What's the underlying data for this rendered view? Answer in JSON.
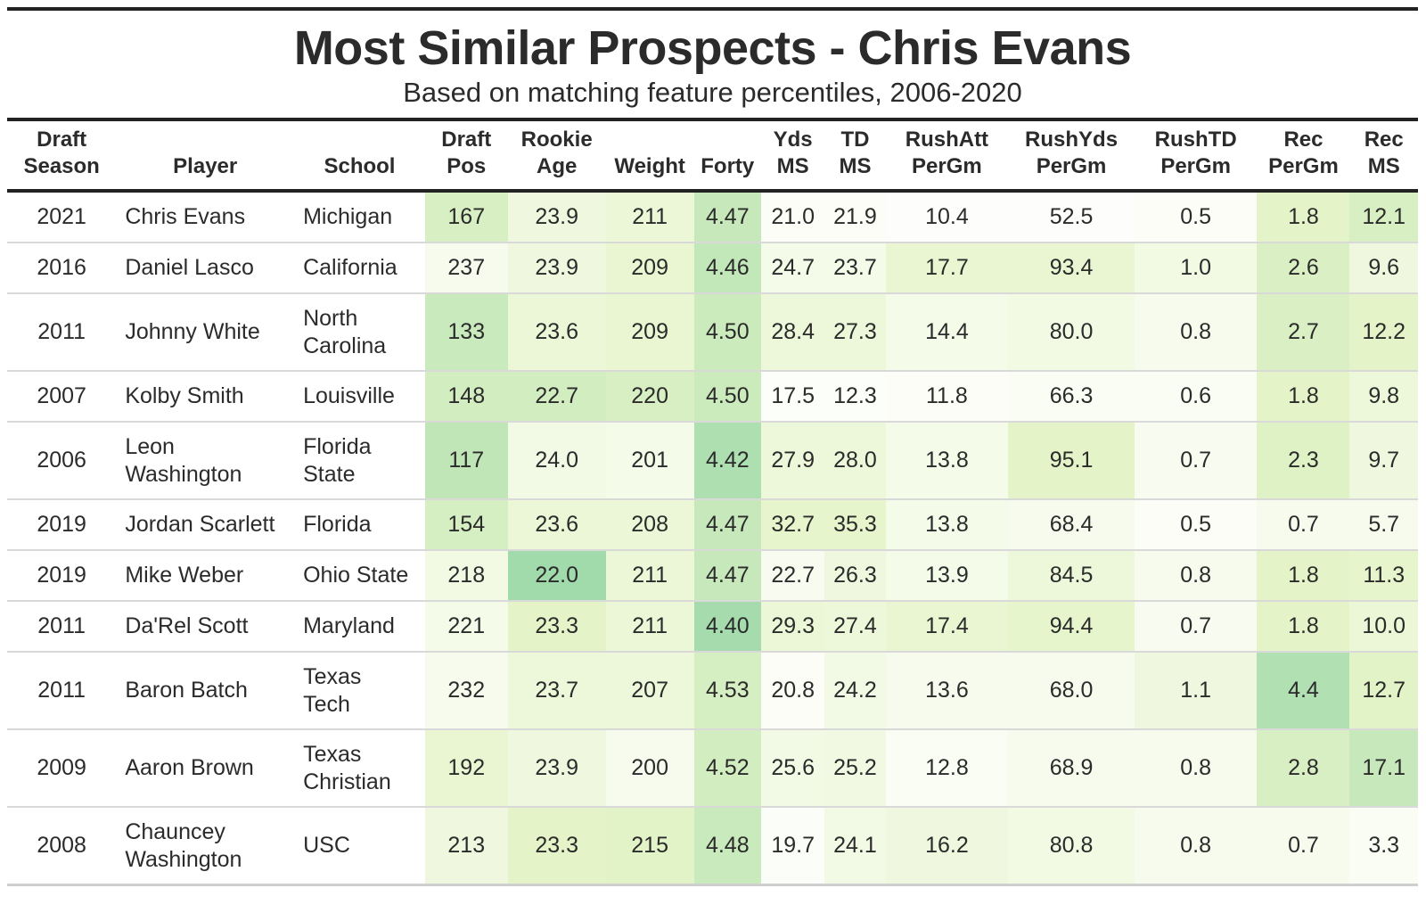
{
  "title": "Most Similar Prospects - Chris Evans",
  "subtitle": "Based on matching feature percentiles, 2006-2020",
  "colors": {
    "cell_low": "#ffffff",
    "cell_high": "#8fd3a3",
    "rule": "#222222"
  },
  "chart_data": {
    "type": "table",
    "title": "Most Similar Prospects - Chris Evans",
    "subtitle": "Based on matching feature percentiles, 2006-2020",
    "columns": [
      {
        "key": "season",
        "label": [
          "Draft",
          "Season"
        ]
      },
      {
        "key": "player",
        "label": [
          "Player"
        ]
      },
      {
        "key": "school",
        "label": [
          "School"
        ]
      },
      {
        "key": "pos",
        "label": [
          "Draft",
          "Pos"
        ]
      },
      {
        "key": "age",
        "label": [
          "Rookie",
          "Age"
        ]
      },
      {
        "key": "weight",
        "label": [
          "Weight"
        ]
      },
      {
        "key": "forty",
        "label": [
          "Forty"
        ]
      },
      {
        "key": "ydsms",
        "label": [
          "Yds",
          "MS"
        ]
      },
      {
        "key": "tdms",
        "label": [
          "TD",
          "MS"
        ]
      },
      {
        "key": "rushatt",
        "label": [
          "RushAtt",
          "PerGm"
        ]
      },
      {
        "key": "rushyds",
        "label": [
          "RushYds",
          "PerGm"
        ]
      },
      {
        "key": "rushtd",
        "label": [
          "RushTD",
          "PerGm"
        ]
      },
      {
        "key": "rec",
        "label": [
          "Rec",
          "PerGm"
        ]
      },
      {
        "key": "recms",
        "label": [
          "Rec",
          "MS"
        ]
      }
    ],
    "rows": [
      {
        "season": "2021",
        "player": "Chris Evans",
        "school": "Michigan",
        "pos": "167",
        "age": "23.9",
        "weight": "211",
        "forty": "4.47",
        "ydsms": "21.0",
        "tdms": "21.9",
        "rushatt": "10.4",
        "rushyds": "52.5",
        "rushtd": "0.5",
        "rec": "1.8",
        "recms": "12.1",
        "shade": {
          "pos": 0.4,
          "age": 0.18,
          "weight": 0.22,
          "forty": 0.55,
          "ydsms": 0.05,
          "tdms": 0.05,
          "rushatt": 0.02,
          "rushyds": 0.02,
          "rushtd": 0.05,
          "rec": 0.3,
          "recms": 0.4
        }
      },
      {
        "season": "2016",
        "player": "Daniel Lasco",
        "school": "California",
        "pos": "237",
        "age": "23.9",
        "weight": "209",
        "forty": "4.46",
        "ydsms": "24.7",
        "tdms": "23.7",
        "rushatt": "17.7",
        "rushyds": "93.4",
        "rushtd": "1.0",
        "rec": "2.6",
        "recms": "9.6",
        "shade": {
          "pos": 0.1,
          "age": 0.18,
          "weight": 0.25,
          "forty": 0.58,
          "ydsms": 0.12,
          "tdms": 0.12,
          "rushatt": 0.25,
          "rushyds": 0.25,
          "rushtd": 0.15,
          "rec": 0.38,
          "recms": 0.18
        }
      },
      {
        "season": "2011",
        "player": "Johnny White",
        "school": "North\nCarolina",
        "pos": "133",
        "age": "23.6",
        "weight": "209",
        "forty": "4.50",
        "ydsms": "28.4",
        "tdms": "27.3",
        "rushatt": "14.4",
        "rushyds": "80.0",
        "rushtd": "0.8",
        "rec": "2.7",
        "recms": "12.2",
        "shade": {
          "pos": 0.52,
          "age": 0.22,
          "weight": 0.25,
          "forty": 0.5,
          "ydsms": 0.2,
          "tdms": 0.2,
          "rushatt": 0.12,
          "rushyds": 0.15,
          "rushtd": 0.1,
          "rec": 0.38,
          "recms": 0.3
        }
      },
      {
        "season": "2007",
        "player": "Kolby Smith",
        "school": "Louisville",
        "pos": "148",
        "age": "22.7",
        "weight": "220",
        "forty": "4.50",
        "ydsms": "17.5",
        "tdms": "12.3",
        "rushatt": "11.8",
        "rushyds": "66.3",
        "rushtd": "0.6",
        "rec": "1.8",
        "recms": "9.8",
        "shade": {
          "pos": 0.45,
          "age": 0.45,
          "weight": 0.4,
          "forty": 0.5,
          "ydsms": 0.03,
          "tdms": 0.03,
          "rushatt": 0.05,
          "rushyds": 0.06,
          "rushtd": 0.06,
          "rec": 0.3,
          "recms": 0.2
        }
      },
      {
        "season": "2006",
        "player": "Leon\nWashington",
        "school": "Florida\nState",
        "pos": "117",
        "age": "24.0",
        "weight": "201",
        "forty": "4.42",
        "ydsms": "27.9",
        "tdms": "28.0",
        "rushatt": "13.8",
        "rushyds": "95.1",
        "rushtd": "0.7",
        "rec": "2.3",
        "recms": "9.7",
        "shade": {
          "pos": 0.6,
          "age": 0.14,
          "weight": 0.12,
          "forty": 0.75,
          "ydsms": 0.2,
          "tdms": 0.2,
          "rushatt": 0.12,
          "rushyds": 0.3,
          "rushtd": 0.08,
          "rec": 0.35,
          "recms": 0.18
        }
      },
      {
        "season": "2019",
        "player": "Jordan Scarlett",
        "school": "Florida",
        "pos": "154",
        "age": "23.6",
        "weight": "208",
        "forty": "4.47",
        "ydsms": "32.7",
        "tdms": "35.3",
        "rushatt": "13.8",
        "rushyds": "68.4",
        "rushtd": "0.5",
        "rec": "0.7",
        "recms": "5.7",
        "shade": {
          "pos": 0.42,
          "age": 0.22,
          "weight": 0.22,
          "forty": 0.55,
          "ydsms": 0.28,
          "tdms": 0.28,
          "rushatt": 0.12,
          "rushyds": 0.1,
          "rushtd": 0.05,
          "rec": 0.1,
          "recms": 0.1
        }
      },
      {
        "season": "2019",
        "player": "Mike Weber",
        "school": "Ohio State",
        "pos": "218",
        "age": "22.0",
        "weight": "211",
        "forty": "4.47",
        "ydsms": "22.7",
        "tdms": "26.3",
        "rushatt": "13.9",
        "rushyds": "84.5",
        "rushtd": "0.8",
        "rec": "1.8",
        "recms": "11.3",
        "shade": {
          "pos": 0.15,
          "age": 0.85,
          "weight": 0.22,
          "forty": 0.55,
          "ydsms": 0.08,
          "tdms": 0.18,
          "rushatt": 0.12,
          "rushyds": 0.2,
          "rushtd": 0.1,
          "rec": 0.3,
          "recms": 0.28
        }
      },
      {
        "season": "2011",
        "player": "Da'Rel Scott",
        "school": "Maryland",
        "pos": "221",
        "age": "23.3",
        "weight": "211",
        "forty": "4.40",
        "ydsms": "29.3",
        "tdms": "27.4",
        "rushatt": "17.4",
        "rushyds": "94.4",
        "rushtd": "0.7",
        "rec": "1.8",
        "recms": "10.0",
        "shade": {
          "pos": 0.12,
          "age": 0.3,
          "weight": 0.22,
          "forty": 0.82,
          "ydsms": 0.22,
          "tdms": 0.2,
          "rushatt": 0.25,
          "rushyds": 0.28,
          "rushtd": 0.08,
          "rec": 0.3,
          "recms": 0.22
        }
      },
      {
        "season": "2011",
        "player": "Baron Batch",
        "school": "Texas\nTech",
        "pos": "232",
        "age": "23.7",
        "weight": "207",
        "forty": "4.53",
        "ydsms": "20.8",
        "tdms": "24.2",
        "rushatt": "13.6",
        "rushyds": "68.0",
        "rushtd": "1.1",
        "rec": "4.4",
        "recms": "12.7",
        "shade": {
          "pos": 0.1,
          "age": 0.2,
          "weight": 0.2,
          "forty": 0.42,
          "ydsms": 0.05,
          "tdms": 0.14,
          "rushatt": 0.1,
          "rushyds": 0.1,
          "rushtd": 0.18,
          "rec": 0.72,
          "recms": 0.32
        }
      },
      {
        "season": "2009",
        "player": "Aaron Brown",
        "school": "Texas\nChristian",
        "pos": "192",
        "age": "23.9",
        "weight": "200",
        "forty": "4.52",
        "ydsms": "25.6",
        "tdms": "25.2",
        "rushatt": "12.8",
        "rushyds": "68.9",
        "rushtd": "0.8",
        "rec": "2.8",
        "recms": "17.1",
        "shade": {
          "pos": 0.25,
          "age": 0.18,
          "weight": 0.1,
          "forty": 0.45,
          "ydsms": 0.14,
          "tdms": 0.16,
          "rushatt": 0.06,
          "rushyds": 0.1,
          "rushtd": 0.1,
          "rec": 0.4,
          "recms": 0.55
        }
      },
      {
        "season": "2008",
        "player": "Chauncey\nWashington",
        "school": "USC",
        "pos": "213",
        "age": "23.3",
        "weight": "215",
        "forty": "4.48",
        "ydsms": "19.7",
        "tdms": "24.1",
        "rushatt": "16.2",
        "rushyds": "80.8",
        "rushtd": "0.8",
        "rec": "0.7",
        "recms": "3.3",
        "shade": {
          "pos": 0.18,
          "age": 0.3,
          "weight": 0.32,
          "forty": 0.52,
          "ydsms": 0.04,
          "tdms": 0.14,
          "rushatt": 0.18,
          "rushyds": 0.15,
          "rushtd": 0.1,
          "rec": 0.1,
          "recms": 0.06
        }
      }
    ]
  }
}
